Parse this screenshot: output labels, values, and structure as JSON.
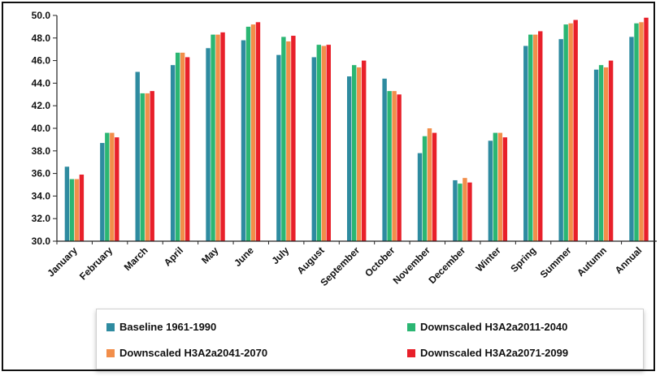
{
  "chart_data": {
    "type": "bar",
    "title": "",
    "xlabel": "",
    "ylabel": "",
    "ylim": [
      30.0,
      50.0
    ],
    "yticks": [
      "30.0",
      "32.0",
      "34.0",
      "36.0",
      "38.0",
      "40.0",
      "42.0",
      "44.0",
      "46.0",
      "48.0",
      "50.0"
    ],
    "grid": false,
    "legend_position": "bottom",
    "categories": [
      "January",
      "February",
      "March",
      "April",
      "May",
      "June",
      "July",
      "August",
      "September",
      "October",
      "November",
      "December",
      "Winter",
      "Spring",
      "Summer",
      "Autumn",
      "Annual"
    ],
    "series": [
      {
        "name": "Baseline 1961-1990",
        "color": "#2e8ba0",
        "values": [
          36.6,
          38.7,
          45.0,
          45.6,
          47.1,
          47.8,
          46.5,
          46.3,
          44.6,
          44.4,
          37.8,
          35.4,
          38.9,
          47.3,
          47.9,
          45.2,
          48.1
        ]
      },
      {
        "name": "Downscaled H3A2a2011-2040",
        "color": "#2bb673",
        "values": [
          35.5,
          39.6,
          43.1,
          46.7,
          48.3,
          49.0,
          48.1,
          47.4,
          45.6,
          43.3,
          39.3,
          35.1,
          39.6,
          48.3,
          49.2,
          45.6,
          49.3
        ]
      },
      {
        "name": "Downscaled H3A2a2041-2070",
        "color": "#f28e4a",
        "values": [
          35.5,
          39.6,
          43.1,
          46.7,
          48.3,
          49.2,
          47.7,
          47.3,
          45.4,
          43.3,
          40.0,
          35.6,
          39.6,
          48.3,
          49.3,
          45.4,
          49.4
        ]
      },
      {
        "name": "Downscaled H3A2a2071-2099",
        "color": "#e8202a",
        "values": [
          35.9,
          39.2,
          43.3,
          46.3,
          48.5,
          49.4,
          48.2,
          47.4,
          46.0,
          43.0,
          39.6,
          35.2,
          39.2,
          48.6,
          49.6,
          46.0,
          49.8
        ]
      }
    ]
  }
}
